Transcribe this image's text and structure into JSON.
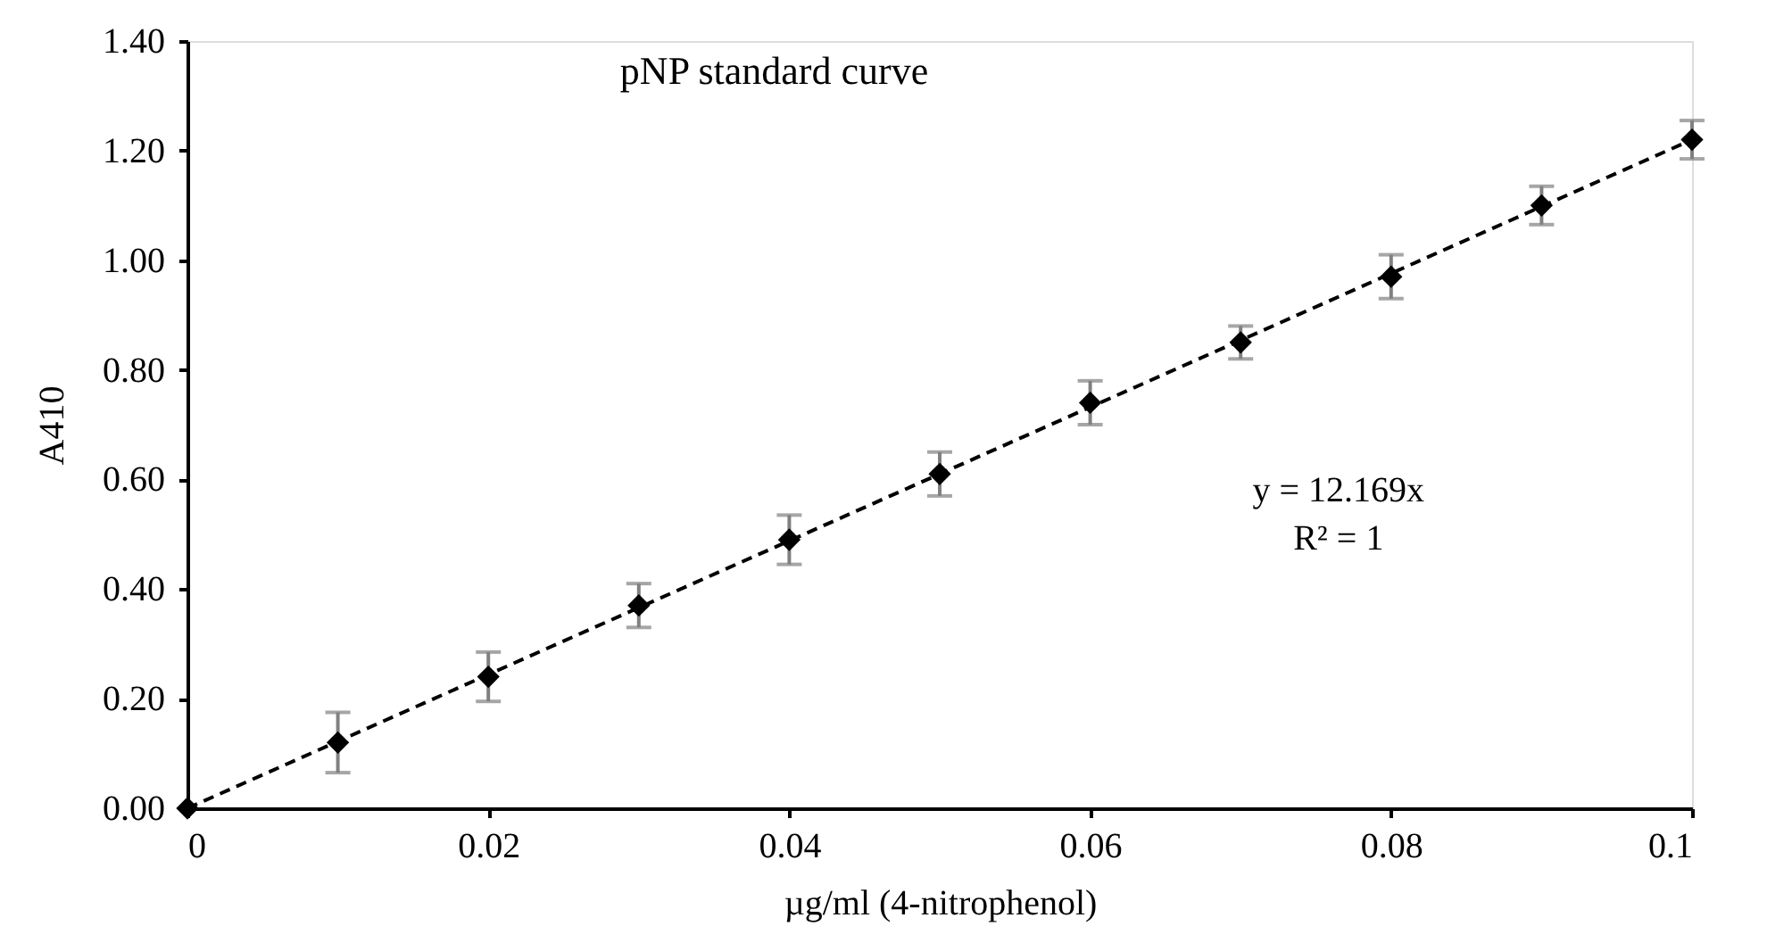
{
  "chart_data": {
    "type": "scatter",
    "title": "pNP standard curve",
    "xlabel": "µg/ml (4-nitrophenol)",
    "ylabel": "A410",
    "x": [
      0,
      0.01,
      0.02,
      0.03,
      0.04,
      0.05,
      0.06,
      0.07,
      0.08,
      0.09,
      0.1
    ],
    "series": [
      {
        "color": "#000000",
        "marker": "diamond",
        "values": [
          0,
          0.12,
          0.24,
          0.37,
          0.49,
          0.61,
          0.74,
          0.85,
          0.97,
          1.1,
          1.22
        ],
        "errors": [
          null,
          0.055,
          0.045,
          0.04,
          0.045,
          0.04,
          0.04,
          0.03,
          0.04,
          0.035,
          0.035
        ]
      },
      {
        "type": "line",
        "color": "#000000",
        "line_style": "dashed",
        "x": [
          0,
          0.1
        ],
        "values": [
          0,
          1.22
        ]
      }
    ],
    "xlim": [
      0,
      0.1
    ],
    "xticks": [
      0,
      0.02,
      0.04,
      0.06,
      0.08,
      0.1
    ],
    "ylim": [
      0,
      1.4
    ],
    "yticks": [
      {
        "value": 0,
        "label": "0.00"
      },
      {
        "value": 0.2,
        "label": "0.20"
      },
      {
        "value": 0.4,
        "label": "0.40"
      },
      {
        "value": 0.6,
        "label": "0.60"
      },
      {
        "value": 0.8,
        "label": "0.80"
      },
      {
        "value": 1.0,
        "label": "1.00"
      },
      {
        "value": 1.2,
        "label": "1.20"
      },
      {
        "value": 1.4,
        "label": "1.40"
      }
    ],
    "annotations": [
      "y = 12.169x",
      "R² = 1"
    ],
    "grid": false
  }
}
